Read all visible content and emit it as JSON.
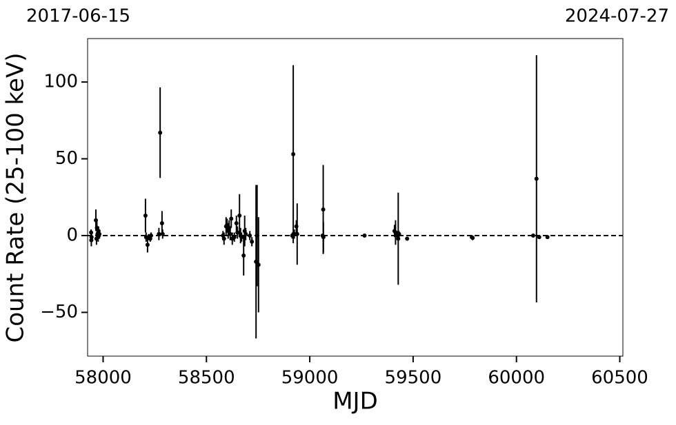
{
  "chart_data": {
    "type": "errorbar-scatter",
    "top_labels": [
      "2017-06-15",
      "2024-07-27"
    ],
    "xlabel": "MJD",
    "ylabel": "Count Rate (25-100 keV)",
    "xlim": [
      57925,
      60515
    ],
    "ylim": [
      -78.5,
      128.3
    ],
    "xticks": [
      58000,
      58500,
      59000,
      59500,
      60000,
      60500
    ],
    "yticks": [
      {
        "value": -50,
        "label": "−50"
      },
      0,
      50,
      100
    ],
    "hline": 0,
    "color": "#000000",
    "hline_color": "#000000",
    "series": [
      {
        "name": "data",
        "x": [
          57942,
          57943,
          57944,
          57965,
          57968,
          57970,
          57973,
          57976,
          57978,
          57980,
          57982,
          58205,
          58208,
          58215,
          58220,
          58228,
          58232,
          58270,
          58276,
          58285,
          58288,
          58580,
          58585,
          58595,
          58600,
          58605,
          58610,
          58615,
          58620,
          58625,
          58635,
          58645,
          58650,
          58660,
          58665,
          58670,
          58680,
          58685,
          58690,
          58710,
          58720,
          58740,
          58745,
          58752,
          58915,
          58920,
          58925,
          58935,
          58939,
          59062,
          59065,
          59066,
          59265,
          59410,
          59415,
          59425,
          59428,
          59432,
          59471,
          59784,
          59788,
          60081,
          60097,
          60110,
          60150
        ],
        "values": [
          2,
          -3,
          -1,
          10,
          -2,
          5,
          1,
          -1,
          3,
          0,
          1,
          13,
          -1,
          -6,
          -1,
          -2,
          0,
          1,
          67,
          8,
          1,
          0,
          -2,
          6,
          7,
          3,
          5,
          1,
          11,
          -2,
          -1,
          8,
          2,
          13,
          0,
          -1,
          -13,
          3,
          1,
          0,
          -4,
          -17,
          0,
          -19,
          0,
          53,
          1,
          6,
          1,
          0,
          17,
          -1,
          0,
          3,
          2,
          0,
          -2,
          1,
          -2,
          -1,
          -1.5,
          0,
          37,
          -1,
          -1
        ],
        "errors": [
          2,
          4,
          3,
          7,
          4,
          4,
          3,
          3,
          3,
          2,
          3,
          11,
          3,
          5,
          2,
          2,
          2,
          4,
          29.5,
          8,
          3,
          3,
          4,
          6,
          4,
          5,
          5,
          4,
          6,
          4,
          3,
          5,
          4,
          14,
          5,
          3,
          13,
          10,
          4,
          3,
          3,
          50,
          33,
          31,
          2,
          58,
          3,
          4,
          20,
          1,
          29,
          10,
          0.5,
          4,
          8,
          3,
          30,
          2,
          1,
          1,
          1.5,
          1,
          80.5,
          1,
          1
        ]
      }
    ]
  }
}
